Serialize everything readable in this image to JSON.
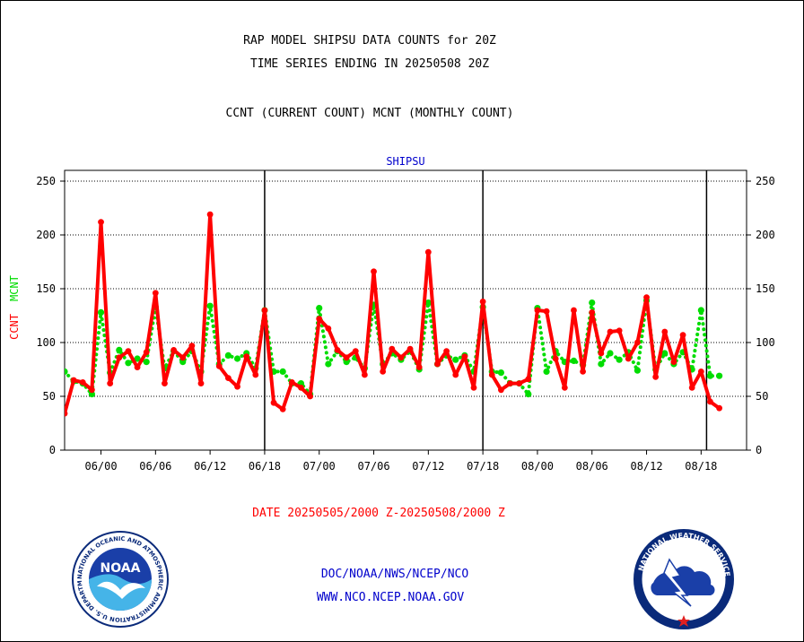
{
  "header": {
    "title_line1": "RAP MODEL SHIPSU DATA COUNTS for 20Z",
    "title_line2": "TIME SERIES ENDING IN 20250508 20Z",
    "subtitle": "CCNT (CURRENT COUNT) MCNT (MONTHLY COUNT)"
  },
  "colors": {
    "ccnt": "#ff0000",
    "mcnt": "#00dd00",
    "label_blue": "#0000cc",
    "grid": "#000000"
  },
  "chart_data": {
    "type": "line",
    "title": "SHIPSU",
    "ylabel_ccnt": "CCNT",
    "ylabel_mcnt": "MCNT",
    "ylim": [
      0,
      260
    ],
    "yticks": [
      0,
      50,
      100,
      150,
      200,
      250
    ],
    "x_range": [
      0,
      75
    ],
    "xticks": [
      {
        "x": 4,
        "label": "06/00"
      },
      {
        "x": 10,
        "label": "06/06"
      },
      {
        "x": 16,
        "label": "06/12"
      },
      {
        "x": 22,
        "label": "06/18"
      },
      {
        "x": 28,
        "label": "07/00"
      },
      {
        "x": 34,
        "label": "07/06"
      },
      {
        "x": 40,
        "label": "07/12"
      },
      {
        "x": 46,
        "label": "07/18"
      },
      {
        "x": 52,
        "label": "08/00"
      },
      {
        "x": 58,
        "label": "08/06"
      },
      {
        "x": 64,
        "label": "08/12"
      },
      {
        "x": 70,
        "label": "08/18"
      }
    ],
    "vlines": [
      22,
      46,
      70.6
    ],
    "grid": true,
    "series": [
      {
        "name": "CCNT",
        "values": [
          34,
          65,
          63,
          56,
          212,
          62,
          86,
          92,
          77,
          91,
          146,
          62,
          93,
          86,
          97,
          62,
          219,
          78,
          67,
          59,
          87,
          70,
          130,
          44,
          38,
          63,
          58,
          50,
          122,
          113,
          93,
          86,
          92,
          70,
          166,
          73,
          94,
          86,
          94,
          77,
          184,
          80,
          92,
          70,
          87,
          58,
          138,
          70,
          56,
          62,
          62,
          66,
          130,
          129,
          85,
          58,
          130,
          73,
          128,
          90,
          110,
          111,
          85,
          100,
          142,
          68,
          110,
          82,
          107,
          58,
          73,
          45,
          39
        ],
        "style": "solid"
      },
      {
        "name": "MCNT",
        "values": [
          73,
          64,
          62,
          52,
          128,
          72,
          93,
          81,
          85,
          82,
          133,
          76,
          92,
          82,
          92,
          73,
          134,
          80,
          88,
          85,
          90,
          76,
          130,
          73,
          73,
          62,
          62,
          52,
          132,
          80,
          92,
          82,
          86,
          76,
          135,
          80,
          90,
          84,
          92,
          75,
          137,
          80,
          88,
          84,
          88,
          73,
          133,
          73,
          72,
          62,
          62,
          52,
          132,
          73,
          92,
          82,
          83,
          79,
          137,
          80,
          90,
          84,
          91,
          74,
          139,
          75,
          90,
          80,
          91,
          75,
          130,
          69,
          69
        ],
        "style": "dotted"
      }
    ]
  },
  "footer": {
    "date_range": "DATE 20250505/2000 Z-20250508/2000 Z",
    "link1": "DOC/NOAA/NWS/NCEP/NCO",
    "link2": "WWW.NCO.NCEP.NOAA.GOV",
    "noaa_logo_text": "NOAA",
    "noaa_ring_text": "NATIONAL OCEANIC AND ATMOSPHERIC ADMINISTRATION U.S. DEPARTMENT OF COMMERCE",
    "nws_ring_text": "NATIONAL WEATHER SERVICE"
  }
}
